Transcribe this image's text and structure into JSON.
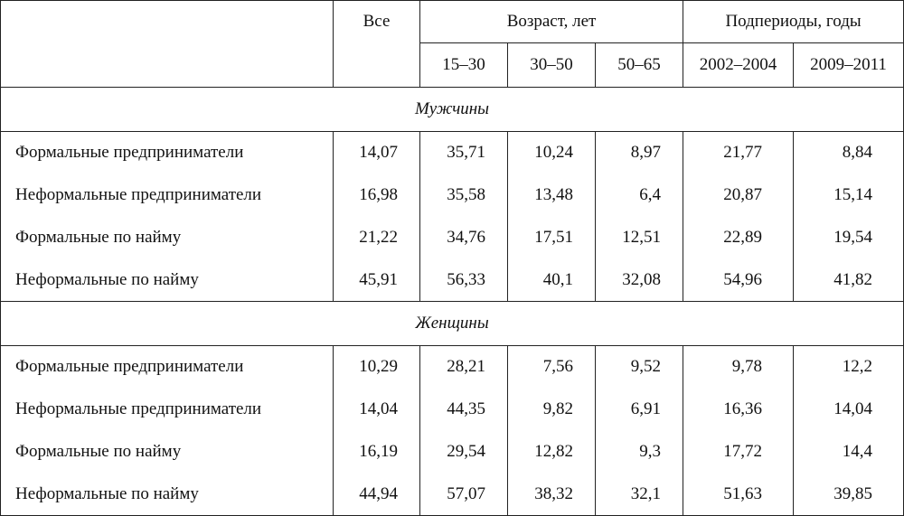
{
  "header": {
    "all": "Все",
    "age_group": "Возраст, лет",
    "period_group": "Подпериоды, годы",
    "columns": [
      "15–30",
      "30–50",
      "50–65",
      "2002–2004",
      "2009–2011"
    ]
  },
  "sections": [
    {
      "title": "Мужчины",
      "rows": [
        {
          "label": "Формальные предприниматели",
          "values": [
            "14,07",
            "35,71",
            "10,24",
            "8,97",
            "21,77",
            "8,84"
          ]
        },
        {
          "label": "Неформальные предприниматели",
          "values": [
            "16,98",
            "35,58",
            "13,48",
            "6,4",
            "20,87",
            "15,14"
          ]
        },
        {
          "label": "Формальные по найму",
          "values": [
            "21,22",
            "34,76",
            "17,51",
            "12,51",
            "22,89",
            "19,54"
          ]
        },
        {
          "label": "Неформальные по найму",
          "values": [
            "45,91",
            "56,33",
            "40,1",
            "32,08",
            "54,96",
            "41,82"
          ]
        }
      ]
    },
    {
      "title": "Женщины",
      "rows": [
        {
          "label": "Формальные предприниматели",
          "values": [
            "10,29",
            "28,21",
            "7,56",
            "9,52",
            "9,78",
            "12,2"
          ]
        },
        {
          "label": "Неформальные предприниматели",
          "values": [
            "14,04",
            "44,35",
            "9,82",
            "6,91",
            "16,36",
            "14,04"
          ]
        },
        {
          "label": "Формальные по найму",
          "values": [
            "16,19",
            "29,54",
            "12,82",
            "9,3",
            "17,72",
            "14,4"
          ]
        },
        {
          "label": "Неформальные по найму",
          "values": [
            "44,94",
            "57,07",
            "38,32",
            "32,1",
            "51,63",
            "39,85"
          ]
        }
      ]
    }
  ]
}
